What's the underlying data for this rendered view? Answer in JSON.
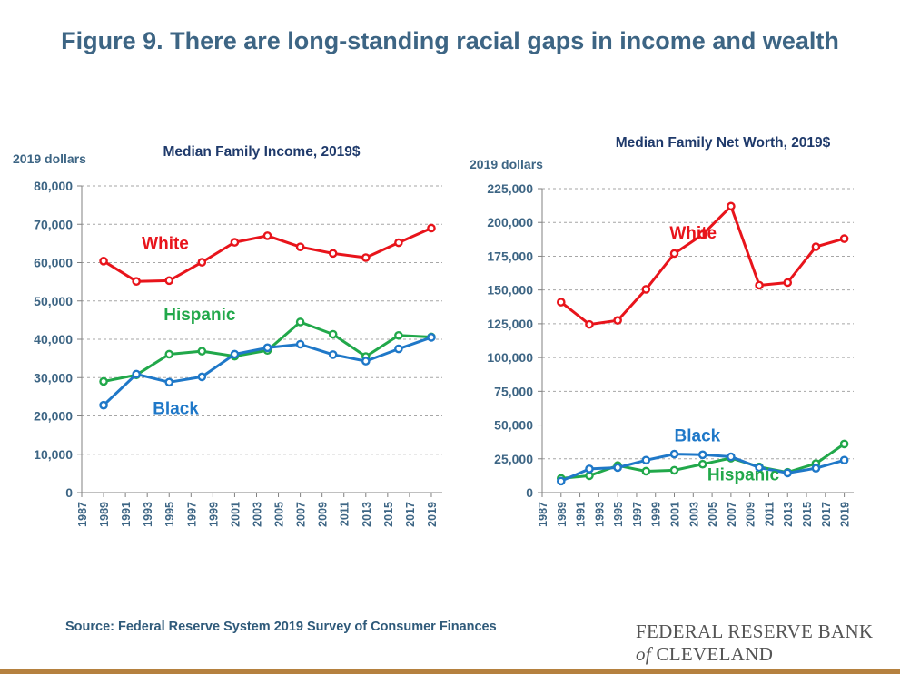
{
  "title": "Figure 9. There are long-standing racial gaps in income and wealth",
  "source": "Source: Federal Reserve System 2019 Survey of Consumer Finances",
  "logo": {
    "line1": "FEDERAL RESERVE BANK",
    "line2_prefix": "of",
    "line2_name": "CLEVELAND"
  },
  "colors": {
    "white": "#e8141b",
    "black": "#1f78c8",
    "hispanic": "#21a84a",
    "axis_text": "#3d6584",
    "subtitle": "#1f3a6b"
  },
  "chart_data": [
    {
      "type": "line",
      "title": "Median Family Income, 2019$",
      "ylabel": "2019 dollars",
      "ylim": [
        0,
        80000
      ],
      "yticks": [
        "0",
        "10,000",
        "20,000",
        "30,000",
        "40,000",
        "50,000",
        "60,000",
        "70,000",
        "80,000"
      ],
      "ytick_values": [
        0,
        10000,
        20000,
        30000,
        40000,
        50000,
        60000,
        70000,
        80000
      ],
      "xlim": [
        1987,
        2020
      ],
      "xticks": [
        "1987",
        "1989",
        "1991",
        "1993",
        "1995",
        "1997",
        "1999",
        "2001",
        "2003",
        "2005",
        "2007",
        "2009",
        "2011",
        "2013",
        "2015",
        "2017",
        "2019"
      ],
      "grid": true,
      "x": [
        1989,
        1992,
        1995,
        1998,
        2001,
        2004,
        2007,
        2010,
        2013,
        2016,
        2019
      ],
      "series": [
        {
          "name": "White",
          "color_key": "white",
          "values": [
            60400,
            55100,
            55300,
            60100,
            65300,
            67000,
            64100,
            62400,
            61300,
            65200,
            69000
          ]
        },
        {
          "name": "Hispanic",
          "color_key": "hispanic",
          "values": [
            29000,
            30700,
            36100,
            36900,
            35600,
            37100,
            44500,
            41300,
            35500,
            41000,
            40600
          ]
        },
        {
          "name": "Black",
          "color_key": "black",
          "values": [
            22800,
            30900,
            28800,
            30200,
            36100,
            37800,
            38700,
            36000,
            34300,
            37500,
            40500
          ]
        }
      ],
      "labels": [
        {
          "text": "White",
          "color_key": "white",
          "x": 1992.5,
          "y": 63500
        },
        {
          "text": "Hispanic",
          "color_key": "hispanic",
          "x": 1994.5,
          "y": 45000
        },
        {
          "text": "Black",
          "color_key": "black",
          "x": 1993.5,
          "y": 20500
        }
      ]
    },
    {
      "type": "line",
      "title": "Median Family Net Worth, 2019$",
      "ylabel": "2019 dollars",
      "ylim": [
        0,
        225000
      ],
      "yticks": [
        "0",
        "25,000",
        "50,000",
        "75,000",
        "100,000",
        "125,000",
        "150,000",
        "175,000",
        "200,000",
        "225,000"
      ],
      "ytick_values": [
        0,
        25000,
        50000,
        75000,
        100000,
        125000,
        150000,
        175000,
        200000,
        225000
      ],
      "xlim": [
        1987,
        2020
      ],
      "xticks": [
        "1987",
        "1989",
        "1991",
        "1993",
        "1995",
        "1997",
        "1999",
        "2001",
        "2003",
        "2005",
        "2007",
        "2009",
        "2011",
        "2013",
        "2015",
        "2017",
        "2019"
      ],
      "grid": true,
      "x": [
        1989,
        1992,
        1995,
        1998,
        2001,
        2004,
        2007,
        2010,
        2013,
        2016,
        2019
      ],
      "series": [
        {
          "name": "White",
          "color_key": "white",
          "values": [
            141000,
            124500,
            127500,
            150500,
            177000,
            191000,
            212000,
            153500,
            155500,
            182000,
            188000
          ]
        },
        {
          "name": "Hispanic",
          "color_key": "hispanic",
          "values": [
            10500,
            12500,
            20000,
            15800,
            16500,
            21000,
            25500,
            19000,
            15000,
            21500,
            36000
          ]
        },
        {
          "name": "Black",
          "color_key": "black",
          "values": [
            8500,
            17500,
            18500,
            24000,
            28500,
            28000,
            26500,
            18500,
            14500,
            18000,
            24000
          ]
        }
      ],
      "labels": [
        {
          "text": "White",
          "color_key": "white",
          "x": 2000.5,
          "y": 188000
        },
        {
          "text": "Black",
          "color_key": "black",
          "x": 2001,
          "y": 38000
        },
        {
          "text": "Hispanic",
          "color_key": "hispanic",
          "x": 2004.5,
          "y": 9000
        }
      ]
    }
  ]
}
